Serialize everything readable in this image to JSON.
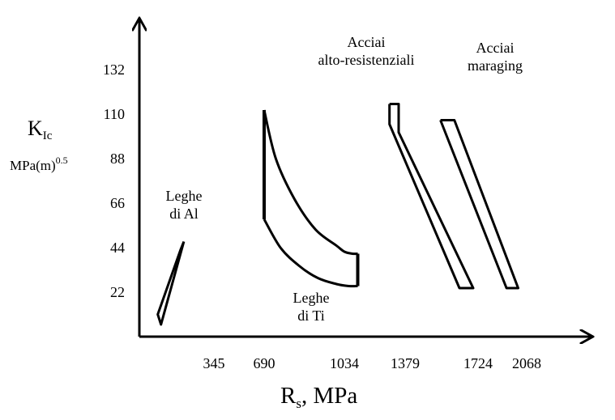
{
  "chart_data": {
    "type": "region",
    "xlabel": {
      "main": "R",
      "sub": "s",
      "rest": ", MPa"
    },
    "ylabel": {
      "main": "K",
      "sub": "Ic",
      "unit_base": "MPa(m)",
      "unit_sup": "0.5"
    },
    "x_ticks": [
      345,
      690,
      1034,
      1379,
      1724,
      2068
    ],
    "y_ticks": [
      22,
      44,
      66,
      88,
      110,
      132
    ],
    "grid": false,
    "regions": [
      {
        "name": "Leghe di Al",
        "label_lines": [
          "Leghe",
          "di Al"
        ],
        "shape": "band",
        "outline": [
          [
            206,
            47
          ],
          [
            100,
            6
          ],
          [
            85,
            11
          ],
          [
            191,
            43
          ],
          [
            206,
            47
          ]
        ]
      },
      {
        "name": "Leghe di Ti",
        "label_lines": [
          "Leghe",
          "di Ti"
        ],
        "shape": "curved band",
        "upper_curve": [
          [
            690,
            112
          ],
          [
            740,
            88
          ],
          [
            820,
            68
          ],
          [
            910,
            53
          ],
          [
            1000,
            45
          ],
          [
            1034,
            42
          ],
          [
            1080,
            41
          ],
          [
            1110,
            41
          ]
        ],
        "lower_curve": [
          [
            690,
            58
          ],
          [
            760,
            44
          ],
          [
            840,
            35
          ],
          [
            920,
            29
          ],
          [
            1000,
            26
          ],
          [
            1060,
            25
          ],
          [
            1110,
            25
          ]
        ],
        "left_edge": [
          [
            690,
            58
          ],
          [
            690,
            112
          ]
        ],
        "right_edge": [
          [
            1110,
            25
          ],
          [
            1110,
            41
          ]
        ]
      },
      {
        "name": "Acciai alto-resistenziali",
        "label_lines": [
          "Acciai",
          "alto-resistenziali"
        ],
        "shape": "band",
        "outline": [
          [
            1290,
            115
          ],
          [
            1342,
            115
          ],
          [
            1342,
            101
          ],
          [
            1701,
            24
          ],
          [
            1636,
            24
          ],
          [
            1290,
            105
          ],
          [
            1290,
            115
          ]
        ]
      },
      {
        "name": "Acciai maraging",
        "label_lines": [
          "Acciai",
          "maraging"
        ],
        "shape": "band",
        "outline": [
          [
            1546,
            107
          ],
          [
            1612,
            107
          ],
          [
            2008,
            24
          ],
          [
            1925,
            24
          ],
          [
            1546,
            107
          ]
        ]
      }
    ]
  }
}
